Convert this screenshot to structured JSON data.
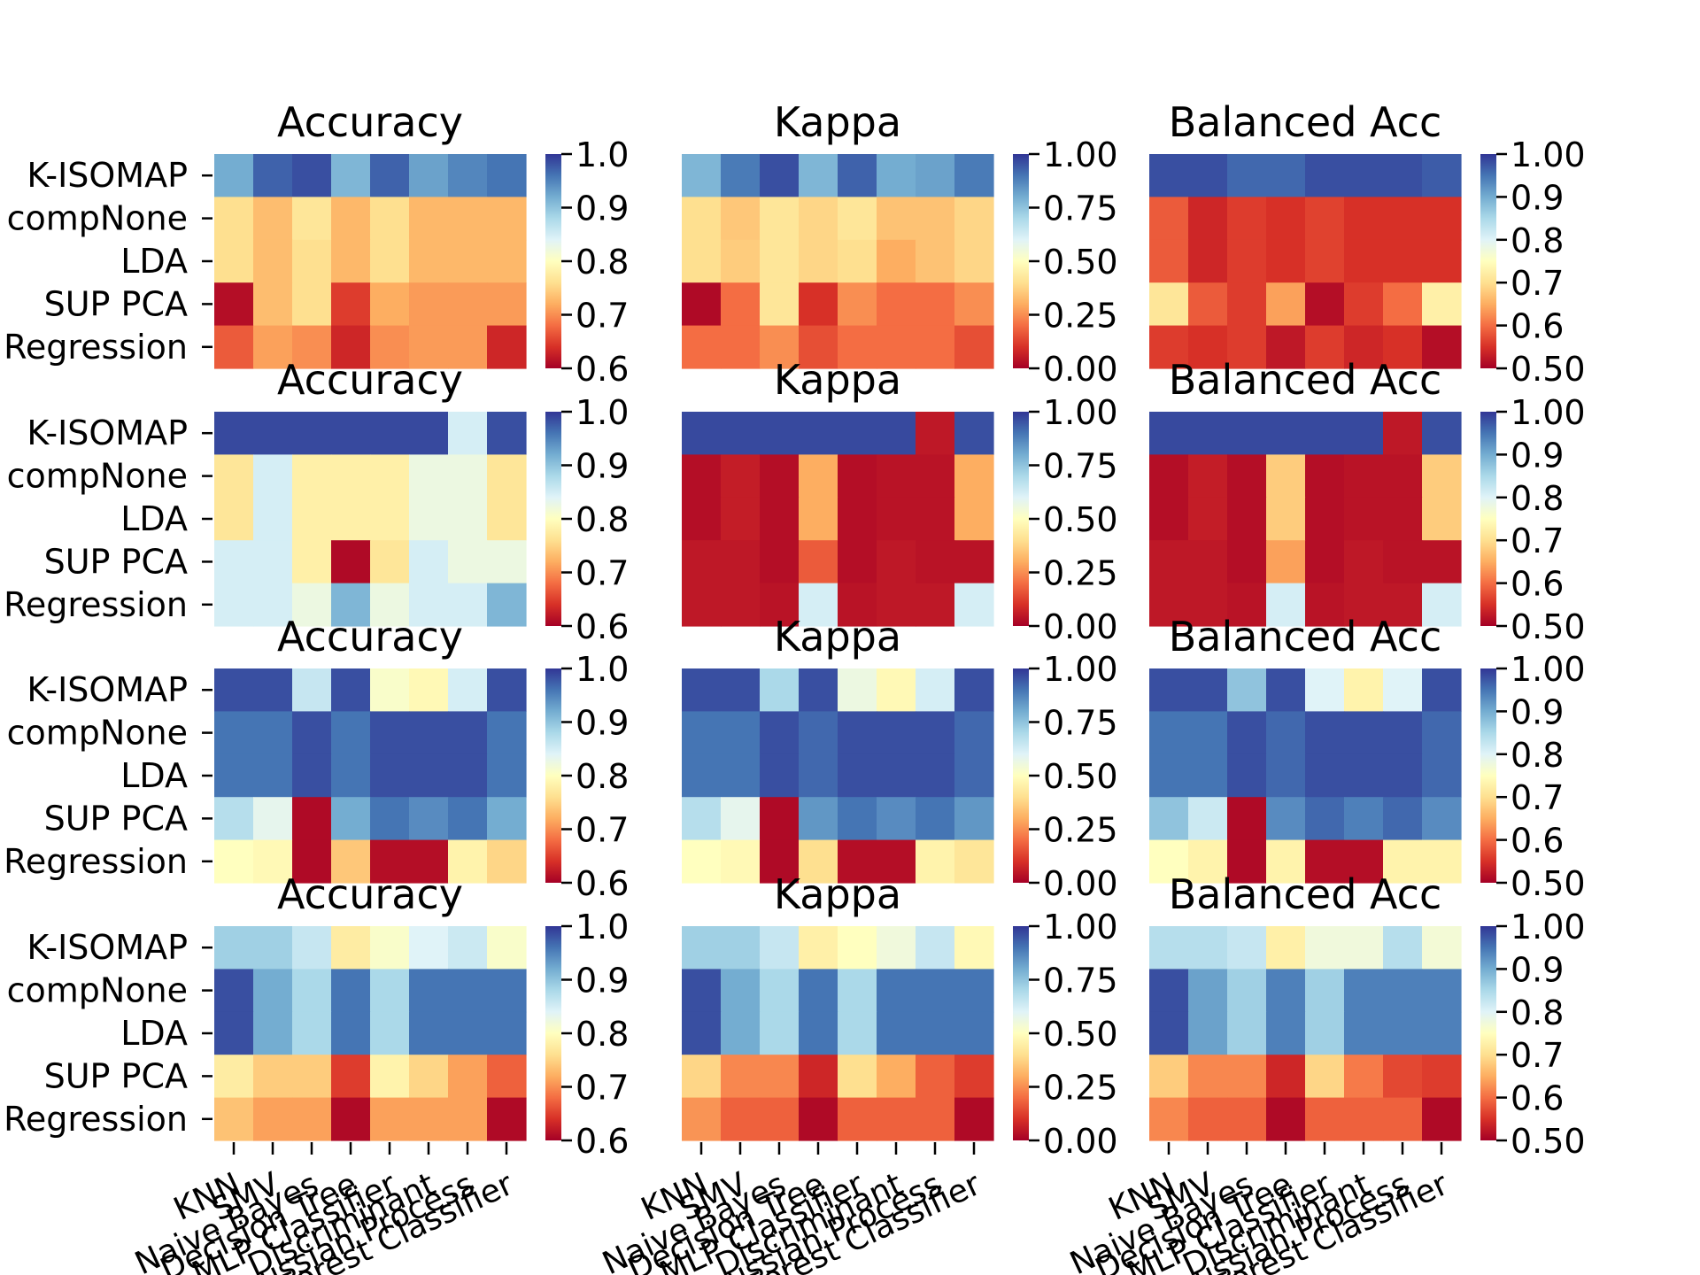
{
  "chart_data": {
    "type": "heatmap",
    "colormap": "RdYlBu",
    "rows": [
      "K-ISOMAP",
      "compNone",
      "LDA",
      "SUP PCA",
      "Regression"
    ],
    "columns": [
      "KNN",
      "SMV",
      "Naive Bayes",
      "Decision Tree",
      "MLP Classifier",
      "Discriminant",
      "Gaussian Process",
      "Forest Classifier"
    ],
    "panel_titles": [
      "Accuracy",
      "Kappa",
      "Balanced Acc"
    ],
    "colorbar_ticks": {
      "Accuracy": [
        "1.0",
        "0.9",
        "0.8",
        "0.7",
        "0.6"
      ],
      "Kappa": [
        "1.00",
        "0.75",
        "0.50",
        "0.25",
        "0.00"
      ],
      "Balanced Acc": [
        "1.00",
        "0.9",
        "0.8",
        "0.7",
        "0.6",
        "0.50"
      ]
    },
    "grid": [
      {
        "Accuracy": [
          [
            0.8,
            0.93,
            0.96,
            0.78,
            0.93,
            0.82,
            0.87,
            0.9
          ],
          [
            0.4,
            0.33,
            0.42,
            0.32,
            0.4,
            0.32,
            0.32,
            0.32
          ],
          [
            0.4,
            0.33,
            0.4,
            0.32,
            0.4,
            0.32,
            0.32,
            0.32
          ],
          [
            0.03,
            0.33,
            0.4,
            0.12,
            0.3,
            0.27,
            0.27,
            0.27
          ],
          [
            0.17,
            0.28,
            0.25,
            0.08,
            0.25,
            0.27,
            0.27,
            0.08
          ]
        ],
        "Kappa": [
          [
            0.78,
            0.89,
            0.96,
            0.78,
            0.93,
            0.8,
            0.82,
            0.89
          ],
          [
            0.4,
            0.35,
            0.42,
            0.38,
            0.42,
            0.34,
            0.34,
            0.38
          ],
          [
            0.4,
            0.36,
            0.42,
            0.38,
            0.4,
            0.3,
            0.34,
            0.38
          ],
          [
            0.02,
            0.2,
            0.42,
            0.1,
            0.25,
            0.2,
            0.2,
            0.25
          ],
          [
            0.2,
            0.2,
            0.25,
            0.15,
            0.2,
            0.2,
            0.2,
            0.15
          ]
        ],
        "Balanced Acc": [
          [
            0.96,
            0.96,
            0.92,
            0.92,
            0.96,
            0.96,
            0.96,
            0.94
          ],
          [
            0.17,
            0.08,
            0.12,
            0.1,
            0.13,
            0.1,
            0.1,
            0.1
          ],
          [
            0.17,
            0.08,
            0.12,
            0.1,
            0.13,
            0.1,
            0.1,
            0.1
          ],
          [
            0.42,
            0.17,
            0.12,
            0.28,
            0.03,
            0.12,
            0.2,
            0.45
          ],
          [
            0.12,
            0.1,
            0.12,
            0.05,
            0.12,
            0.08,
            0.1,
            0.03
          ]
        ]
      },
      {
        "Accuracy": [
          [
            0.97,
            0.97,
            0.97,
            0.97,
            0.97,
            0.97,
            0.62,
            0.96
          ],
          [
            0.42,
            0.62,
            0.45,
            0.45,
            0.45,
            0.56,
            0.56,
            0.42
          ],
          [
            0.42,
            0.62,
            0.45,
            0.45,
            0.45,
            0.56,
            0.56,
            0.42
          ],
          [
            0.62,
            0.62,
            0.45,
            0.02,
            0.42,
            0.62,
            0.56,
            0.56
          ],
          [
            0.62,
            0.62,
            0.56,
            0.78,
            0.56,
            0.62,
            0.62,
            0.78
          ]
        ],
        "Kappa": [
          [
            0.97,
            0.97,
            0.97,
            0.97,
            0.97,
            0.97,
            0.05,
            0.96
          ],
          [
            0.03,
            0.06,
            0.03,
            0.3,
            0.03,
            0.04,
            0.04,
            0.3
          ],
          [
            0.03,
            0.06,
            0.03,
            0.3,
            0.03,
            0.04,
            0.04,
            0.3
          ],
          [
            0.05,
            0.05,
            0.03,
            0.17,
            0.03,
            0.05,
            0.04,
            0.04
          ],
          [
            0.05,
            0.05,
            0.04,
            0.62,
            0.04,
            0.05,
            0.05,
            0.62
          ]
        ],
        "Balanced Acc": [
          [
            0.97,
            0.97,
            0.97,
            0.97,
            0.97,
            0.97,
            0.05,
            0.96
          ],
          [
            0.03,
            0.06,
            0.03,
            0.36,
            0.03,
            0.04,
            0.04,
            0.36
          ],
          [
            0.03,
            0.06,
            0.03,
            0.36,
            0.03,
            0.04,
            0.04,
            0.36
          ],
          [
            0.05,
            0.05,
            0.03,
            0.28,
            0.03,
            0.05,
            0.04,
            0.04
          ],
          [
            0.05,
            0.05,
            0.04,
            0.62,
            0.04,
            0.05,
            0.05,
            0.62
          ]
        ]
      },
      {
        "Accuracy": [
          [
            0.96,
            0.96,
            0.65,
            0.96,
            0.52,
            0.48,
            0.62,
            0.96
          ],
          [
            0.9,
            0.9,
            0.96,
            0.9,
            0.96,
            0.96,
            0.96,
            0.9
          ],
          [
            0.9,
            0.9,
            0.96,
            0.9,
            0.96,
            0.96,
            0.96,
            0.9
          ],
          [
            0.68,
            0.58,
            0.02,
            0.8,
            0.9,
            0.86,
            0.9,
            0.8
          ],
          [
            0.5,
            0.48,
            0.02,
            0.35,
            0.03,
            0.03,
            0.46,
            0.38
          ]
        ],
        "Kappa": [
          [
            0.96,
            0.96,
            0.7,
            0.96,
            0.56,
            0.48,
            0.62,
            0.96
          ],
          [
            0.9,
            0.9,
            0.96,
            0.92,
            0.96,
            0.96,
            0.96,
            0.92
          ],
          [
            0.9,
            0.9,
            0.96,
            0.92,
            0.96,
            0.96,
            0.96,
            0.92
          ],
          [
            0.68,
            0.58,
            0.02,
            0.84,
            0.9,
            0.86,
            0.9,
            0.84
          ],
          [
            0.5,
            0.48,
            0.02,
            0.4,
            0.03,
            0.03,
            0.46,
            0.42
          ]
        ],
        "Balanced Acc": [
          [
            0.96,
            0.96,
            0.75,
            0.96,
            0.6,
            0.46,
            0.6,
            0.96
          ],
          [
            0.9,
            0.9,
            0.96,
            0.92,
            0.96,
            0.96,
            0.96,
            0.92
          ],
          [
            0.9,
            0.9,
            0.96,
            0.92,
            0.96,
            0.96,
            0.96,
            0.92
          ],
          [
            0.75,
            0.64,
            0.02,
            0.86,
            0.92,
            0.88,
            0.92,
            0.86
          ],
          [
            0.5,
            0.46,
            0.02,
            0.46,
            0.03,
            0.03,
            0.46,
            0.46
          ]
        ]
      },
      {
        "Accuracy": [
          [
            0.72,
            0.72,
            0.65,
            0.44,
            0.52,
            0.6,
            0.64,
            0.52
          ],
          [
            0.96,
            0.8,
            0.7,
            0.9,
            0.7,
            0.9,
            0.9,
            0.9
          ],
          [
            0.96,
            0.8,
            0.7,
            0.9,
            0.7,
            0.9,
            0.9,
            0.9
          ],
          [
            0.44,
            0.36,
            0.36,
            0.12,
            0.46,
            0.38,
            0.28,
            0.18
          ],
          [
            0.34,
            0.28,
            0.28,
            0.02,
            0.28,
            0.28,
            0.28,
            0.02
          ]
        ],
        "Kappa": [
          [
            0.72,
            0.72,
            0.65,
            0.45,
            0.5,
            0.55,
            0.65,
            0.48
          ],
          [
            0.96,
            0.8,
            0.7,
            0.9,
            0.7,
            0.9,
            0.9,
            0.9
          ],
          [
            0.96,
            0.8,
            0.7,
            0.9,
            0.7,
            0.9,
            0.9,
            0.9
          ],
          [
            0.38,
            0.24,
            0.24,
            0.08,
            0.4,
            0.3,
            0.18,
            0.12
          ],
          [
            0.26,
            0.18,
            0.18,
            0.02,
            0.18,
            0.18,
            0.18,
            0.02
          ]
        ],
        "Balanced Acc": [
          [
            0.68,
            0.68,
            0.65,
            0.45,
            0.55,
            0.55,
            0.68,
            0.54
          ],
          [
            0.96,
            0.82,
            0.72,
            0.88,
            0.72,
            0.88,
            0.88,
            0.88
          ],
          [
            0.96,
            0.82,
            0.72,
            0.88,
            0.72,
            0.88,
            0.88,
            0.88
          ],
          [
            0.36,
            0.24,
            0.24,
            0.08,
            0.38,
            0.22,
            0.14,
            0.12
          ],
          [
            0.24,
            0.18,
            0.18,
            0.02,
            0.18,
            0.18,
            0.18,
            0.02
          ]
        ]
      }
    ]
  }
}
